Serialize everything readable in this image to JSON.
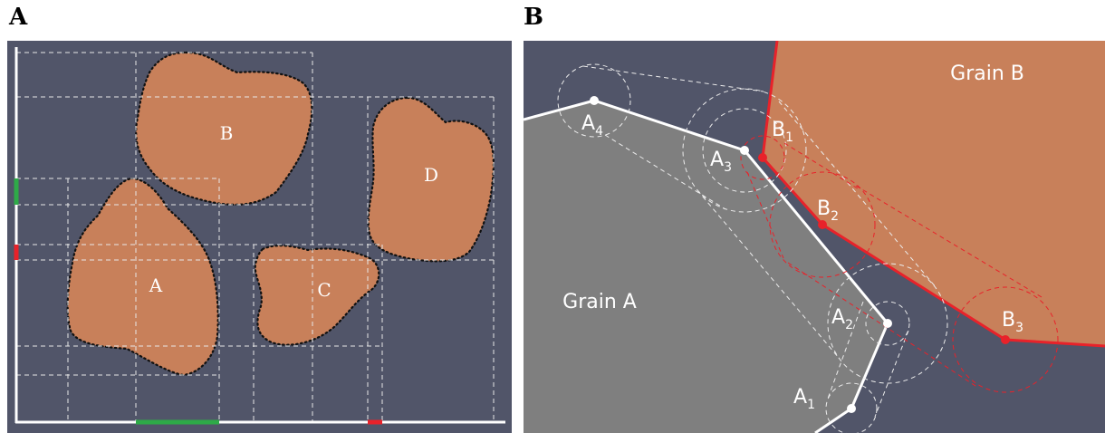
{
  "panels": {
    "a": {
      "letter": "A",
      "grains": [
        "A",
        "B",
        "C",
        "D"
      ]
    },
    "b": {
      "letter": "B",
      "grain_a_label": "Grain A",
      "grain_b_label": "Grain B",
      "a_vertices": [
        {
          "base": "A",
          "sub": "1"
        },
        {
          "base": "A",
          "sub": "2"
        },
        {
          "base": "A",
          "sub": "3"
        },
        {
          "base": "A",
          "sub": "4"
        }
      ],
      "b_vertices": [
        {
          "base": "B",
          "sub": "1"
        },
        {
          "base": "B",
          "sub": "2"
        },
        {
          "base": "B",
          "sub": "3"
        }
      ]
    }
  },
  "colors": {
    "background": "#515569",
    "grain_fill": "#c8805a",
    "grain_a_fill": "#7f7f7f",
    "highlight_green": "#2eaa48",
    "highlight_red": "#e8222a"
  }
}
